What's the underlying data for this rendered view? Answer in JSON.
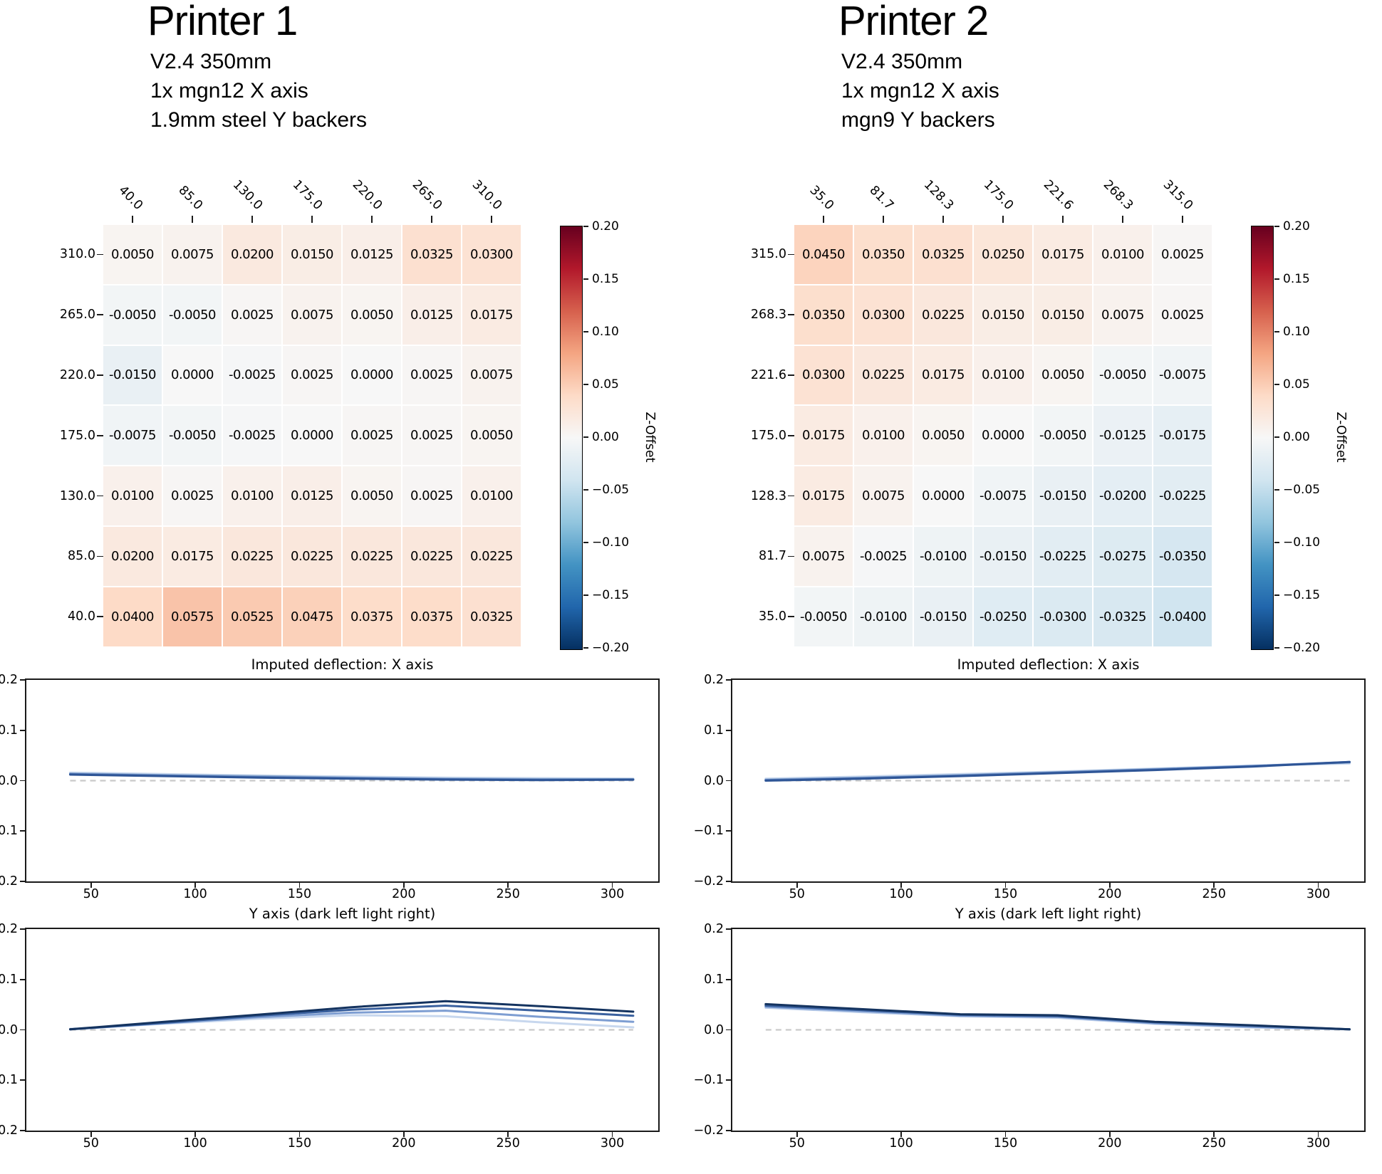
{
  "colorbar": {
    "label": "Z-Offset",
    "ticks": [
      "0.20",
      "0.15",
      "0.10",
      "0.05",
      "0.00",
      "−0.05",
      "−0.10",
      "−0.15",
      "−0.20"
    ],
    "vmin": -0.2,
    "vmax": 0.2,
    "colormap": "RdBu_r"
  },
  "line_axis": {
    "x_tick_values": [
      50,
      100,
      150,
      200,
      250,
      300
    ],
    "x_tick_labels": [
      "50",
      "100",
      "150",
      "200",
      "250",
      "300"
    ],
    "y_tick_values": [
      0.2,
      0.1,
      0.0,
      -0.1,
      -0.2
    ],
    "y_tick_labels": [
      "0.2",
      "0.1",
      "0.0",
      "−0.1",
      "−0.2"
    ],
    "ylim": [
      -0.2,
      0.2
    ],
    "baseline_color": "#c9c9c9"
  },
  "chart_data": [
    {
      "id": "printer1-heatmap",
      "type": "heatmap",
      "panel_title": "Printer 1",
      "subtitle_lines": [
        "V2.4 350mm",
        "1x mgn12 X axis",
        "1.9mm steel Y backers"
      ],
      "x_labels": [
        "40.0",
        "85.0",
        "130.0",
        "175.0",
        "220.0",
        "265.0",
        "310.0"
      ],
      "y_labels": [
        "310.0",
        "265.0",
        "220.0",
        "175.0",
        "130.0",
        "85.0",
        "40.0"
      ],
      "values": [
        [
          0.005,
          0.0075,
          0.02,
          0.015,
          0.0125,
          0.0325,
          0.03
        ],
        [
          -0.005,
          -0.005,
          0.0025,
          0.0075,
          0.005,
          0.0125,
          0.0175
        ],
        [
          -0.015,
          0.0,
          -0.0025,
          0.0025,
          0.0,
          0.0025,
          0.0075
        ],
        [
          -0.0075,
          -0.005,
          -0.0025,
          0.0,
          0.0025,
          0.0025,
          0.005
        ],
        [
          0.01,
          0.0025,
          0.01,
          0.0125,
          0.005,
          0.0025,
          0.01
        ],
        [
          0.02,
          0.0175,
          0.0225,
          0.0225,
          0.0225,
          0.0225,
          0.0225
        ],
        [
          0.04,
          0.0575,
          0.0525,
          0.0475,
          0.0375,
          0.0375,
          0.0325
        ]
      ],
      "value_label": "Z-Offset",
      "vmin": -0.2,
      "vmax": 0.2
    },
    {
      "id": "printer2-heatmap",
      "type": "heatmap",
      "panel_title": "Printer 2",
      "subtitle_lines": [
        "V2.4 350mm",
        "1x mgn12 X axis",
        "mgn9 Y backers"
      ],
      "x_labels": [
        "35.0",
        "81.7",
        "128.3",
        "175.0",
        "221.6",
        "268.3",
        "315.0"
      ],
      "y_labels": [
        "315.0",
        "268.3",
        "221.6",
        "175.0",
        "128.3",
        "81.7",
        "35.0"
      ],
      "values": [
        [
          0.045,
          0.035,
          0.0325,
          0.025,
          0.0175,
          0.01,
          0.0025
        ],
        [
          0.035,
          0.03,
          0.0225,
          0.015,
          0.015,
          0.0075,
          0.0025
        ],
        [
          0.03,
          0.0225,
          0.0175,
          0.01,
          0.005,
          -0.005,
          -0.0075
        ],
        [
          0.0175,
          0.01,
          0.005,
          0.0,
          -0.005,
          -0.0125,
          -0.0175
        ],
        [
          0.0175,
          0.0075,
          0.0,
          -0.0075,
          -0.015,
          -0.02,
          -0.0225
        ],
        [
          0.0075,
          -0.0025,
          -0.01,
          -0.015,
          -0.0225,
          -0.0275,
          -0.035
        ],
        [
          -0.005,
          -0.01,
          -0.015,
          -0.025,
          -0.03,
          -0.0325,
          -0.04
        ]
      ],
      "value_label": "Z-Offset",
      "vmin": -0.2,
      "vmax": 0.2
    },
    {
      "id": "printer1-x-deflection",
      "type": "line",
      "title": "Imputed deflection: X axis",
      "x": [
        40,
        85,
        130,
        175,
        220,
        265,
        310
      ],
      "series": [
        {
          "name": "light",
          "color": "#c7d7ee",
          "values": [
            0.016,
            0.013,
            0.01,
            0.008,
            0.006,
            0.005,
            0.004
          ]
        },
        {
          "name": "mid-light",
          "color": "#8faccf",
          "values": [
            0.014,
            0.011,
            0.009,
            0.006,
            0.004,
            0.003,
            0.003
          ]
        },
        {
          "name": "mid-dark",
          "color": "#5b7fbf",
          "values": [
            0.013,
            0.01,
            0.007,
            0.005,
            0.003,
            0.002,
            0.002
          ]
        },
        {
          "name": "dark",
          "color": "#2e5596",
          "values": [
            0.012,
            0.009,
            0.006,
            0.004,
            0.002,
            0.001,
            0.002
          ]
        }
      ],
      "baseline": 0
    },
    {
      "id": "printer1-y-deflection",
      "type": "line",
      "title": "Y axis (dark left light right)",
      "x": [
        40,
        85,
        130,
        175,
        220,
        265,
        310
      ],
      "series": [
        {
          "name": "light",
          "color": "#c7d7ee",
          "values": [
            0.002,
            0.012,
            0.022,
            0.029,
            0.027,
            0.015,
            0.005
          ]
        },
        {
          "name": "mid-light",
          "color": "#7e9ed2",
          "values": [
            0.001,
            0.013,
            0.025,
            0.034,
            0.038,
            0.026,
            0.016
          ]
        },
        {
          "name": "mid-dark",
          "color": "#3a619f",
          "values": [
            0.001,
            0.014,
            0.028,
            0.04,
            0.048,
            0.038,
            0.028
          ]
        },
        {
          "name": "dark",
          "color": "#14335f",
          "values": [
            0.001,
            0.016,
            0.03,
            0.045,
            0.057,
            0.047,
            0.036
          ]
        }
      ],
      "baseline": 0
    },
    {
      "id": "printer2-x-deflection",
      "type": "line",
      "title": "Imputed deflection: X axis",
      "x": [
        35,
        81.7,
        128.3,
        175,
        221.6,
        268.3,
        315
      ],
      "series": [
        {
          "name": "light",
          "color": "#c7d7ee",
          "values": [
            0.004,
            0.008,
            0.013,
            0.018,
            0.024,
            0.03,
            0.034
          ]
        },
        {
          "name": "mid-light",
          "color": "#8faccf",
          "values": [
            0.002,
            0.006,
            0.011,
            0.017,
            0.023,
            0.029,
            0.036
          ]
        },
        {
          "name": "mid-dark",
          "color": "#5b7fbf",
          "values": [
            0.001,
            0.005,
            0.01,
            0.016,
            0.022,
            0.029,
            0.037
          ]
        },
        {
          "name": "dark",
          "color": "#2e5596",
          "values": [
            0.0,
            0.004,
            0.009,
            0.015,
            0.021,
            0.028,
            0.037
          ]
        }
      ],
      "baseline": 0
    },
    {
      "id": "printer2-y-deflection",
      "type": "line",
      "title": "Y axis (dark left light right)",
      "x": [
        35,
        81.7,
        128.3,
        175,
        221.6,
        268.3,
        315
      ],
      "series": [
        {
          "name": "light",
          "color": "#b9cce9",
          "values": [
            0.044,
            0.035,
            0.027,
            0.024,
            0.012,
            0.005,
            0.001
          ]
        },
        {
          "name": "mid-light",
          "color": "#7e9ed2",
          "values": [
            0.046,
            0.037,
            0.028,
            0.026,
            0.013,
            0.006,
            0.001
          ]
        },
        {
          "name": "mid-dark",
          "color": "#3a619f",
          "values": [
            0.048,
            0.039,
            0.03,
            0.027,
            0.015,
            0.008,
            0.001
          ]
        },
        {
          "name": "dark",
          "color": "#14335f",
          "values": [
            0.051,
            0.041,
            0.031,
            0.029,
            0.016,
            0.009,
            0.001
          ]
        }
      ],
      "baseline": 0
    }
  ]
}
